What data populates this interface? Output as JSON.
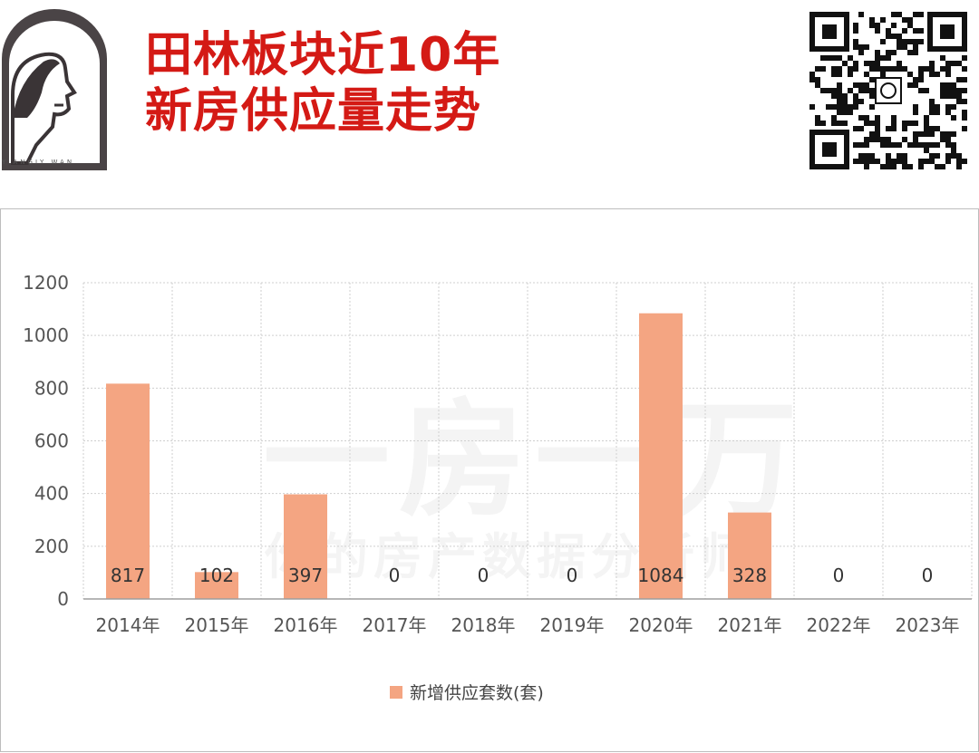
{
  "header": {
    "title_line1": "田林板块近10年",
    "title_line2": "新房供应量走势",
    "logo_caption": "Y  ANGIY  WAN",
    "title_color": "#d41a15",
    "logo_icon": "person-profile-arch-icon",
    "qr_icon": "qr-code-icon"
  },
  "watermark": {
    "big": "一房一万",
    "small": "你的房产数据分析师"
  },
  "chart_data": {
    "type": "bar",
    "categories": [
      "2014年",
      "2015年",
      "2016年",
      "2017年",
      "2018年",
      "2019年",
      "2020年",
      "2021年",
      "2022年",
      "2023年"
    ],
    "series": [
      {
        "name": "新增供应套数(套)",
        "values": [
          817,
          102,
          397,
          0,
          0,
          0,
          1084,
          328,
          0,
          0
        ],
        "color": "#f4a582"
      }
    ],
    "data_labels": [
      "817",
      "102",
      "397",
      "0",
      "0",
      "0",
      "1084",
      "328",
      "0",
      "0"
    ],
    "ylim": [
      0,
      1200
    ],
    "yticks": [
      0,
      200,
      400,
      600,
      800,
      1000,
      1200
    ],
    "grid": true,
    "legend_position": "bottom"
  }
}
